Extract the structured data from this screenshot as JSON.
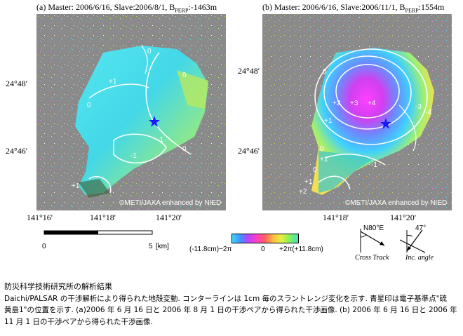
{
  "panels": [
    {
      "letter": "(a)",
      "title_main": "Master: 2006/6/16, Slave:2006/8/1, B",
      "title_sub": "PERP",
      "title_tail": ":-1463m",
      "contour_labels": [
        "0",
        "+1",
        "0",
        "-1",
        "0",
        "+1",
        "-1",
        "0"
      ],
      "credit": "©METI/JAXA enhanced by NIED"
    },
    {
      "letter": "(b)",
      "title_main": "Master: 2006/6/16, Slave:2006/11/1, B",
      "title_sub": "PERP",
      "title_tail": ":1554m",
      "contour_labels": [
        "0",
        "+1",
        "+2",
        "+3",
        "+4",
        "-3",
        "-4",
        "0",
        "+1",
        "0",
        "-1",
        "+1",
        "+2"
      ],
      "credit": "©METI/JAXA enhanced by NIED"
    }
  ],
  "axes": {
    "lat_labels": [
      "24°48'",
      "24°46'"
    ],
    "lon_labels": [
      "141°16'",
      "141°18'",
      "141°20'"
    ]
  },
  "scale_bar": {
    "start": "0",
    "end": "5",
    "unit": "[km]"
  },
  "colorbar": {
    "left": "(-11.8cm)−2π",
    "mid": "0",
    "right": "+2π(+11.8cm)"
  },
  "geometry_icons": {
    "heading": "N80°E",
    "cross_track": "Cross Track",
    "inc_value": "47°",
    "inc_label": "Inc. angle"
  },
  "caption": {
    "heading": "防災科学技術研究所の解析結果",
    "line1": "Daichi/PALSAR の干渉解析により得られた地殻変動. コンターラインは 1cm 毎のスラントレンジ変化を示す. 青星印は電子基準点\"硫",
    "line2": "黄島1\"の位置を示す. (a)2006 年 6 月 16 日と 2006 年 8 月 1 日の干渉ペアから得られた干渉画像. (b) 2006 年 6 月 16 日と 2006 年",
    "line3": "11 月 1 日の干渉ペアから得られた干渉画像."
  },
  "colors": {
    "background_gray": "#8a8a8a",
    "star": "#1a1aff",
    "contour": "#ffffff"
  }
}
